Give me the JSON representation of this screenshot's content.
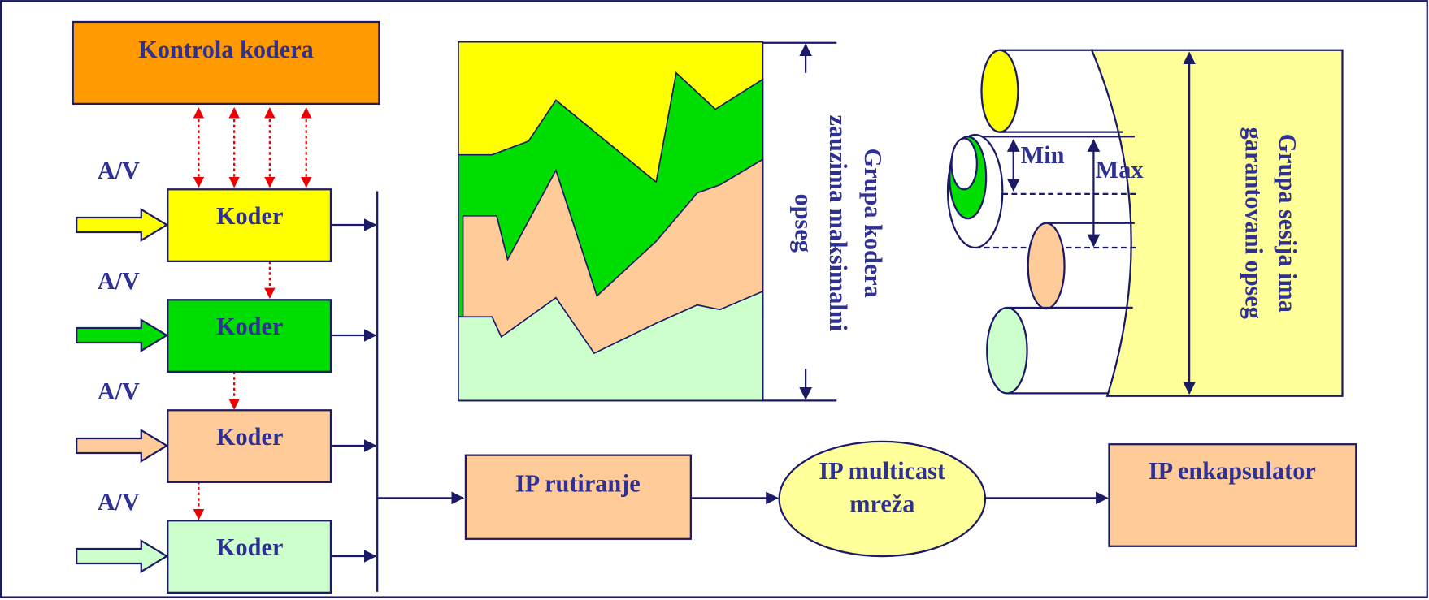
{
  "control": {
    "label": "Kontrola kodera"
  },
  "encoders": [
    {
      "input_label": "A/V",
      "label": "Koder"
    },
    {
      "input_label": "A/V",
      "label": "Koder"
    },
    {
      "input_label": "A/V",
      "label": "Koder"
    },
    {
      "input_label": "A/V",
      "label": "Koder"
    }
  ],
  "routing": {
    "label": "IP rutiranje"
  },
  "multicast": {
    "lines": [
      "IP multicast",
      "mreža"
    ]
  },
  "encapsulator": {
    "label": "IP enkapsulator"
  },
  "encoder_group_note": {
    "lines": [
      "Grupa kodera",
      "zauzima maksimalni",
      "opseg"
    ]
  },
  "session_group_note": {
    "lines": [
      "Grupa sesija ima",
      "garantovani opseg"
    ]
  },
  "min_label": "Min",
  "max_label": "Max"
}
